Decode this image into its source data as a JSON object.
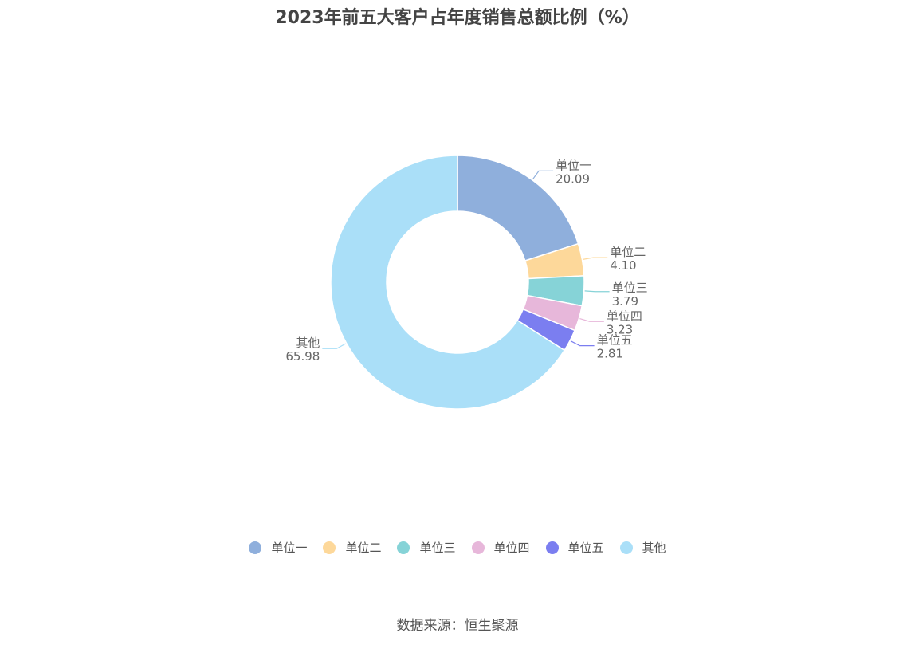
{
  "chart_data": {
    "type": "pie",
    "variant": "donut",
    "title": "2023年前五大客户占年度销售总额比例（%）",
    "categories": [
      "单位一",
      "单位二",
      "单位三",
      "单位四",
      "单位五",
      "其他"
    ],
    "values": [
      20.09,
      4.1,
      3.79,
      3.23,
      2.81,
      65.98
    ],
    "value_labels": [
      "20.09",
      "4.10",
      "3.79",
      "3.23",
      "2.81",
      "65.98"
    ],
    "colors": [
      "#8fafdc",
      "#fdd89a",
      "#86d3d7",
      "#e7b7da",
      "#7b7ef0",
      "#aadff8"
    ],
    "legend_position": "bottom"
  },
  "legend": {
    "items": [
      {
        "label": "单位一",
        "color": "#8fafdc"
      },
      {
        "label": "单位二",
        "color": "#fdd89a"
      },
      {
        "label": "单位三",
        "color": "#86d3d7"
      },
      {
        "label": "单位四",
        "color": "#e7b7da"
      },
      {
        "label": "单位五",
        "color": "#7b7ef0"
      },
      {
        "label": "其他",
        "color": "#aadff8"
      }
    ]
  },
  "source_note": "数据来源：恒生聚源"
}
